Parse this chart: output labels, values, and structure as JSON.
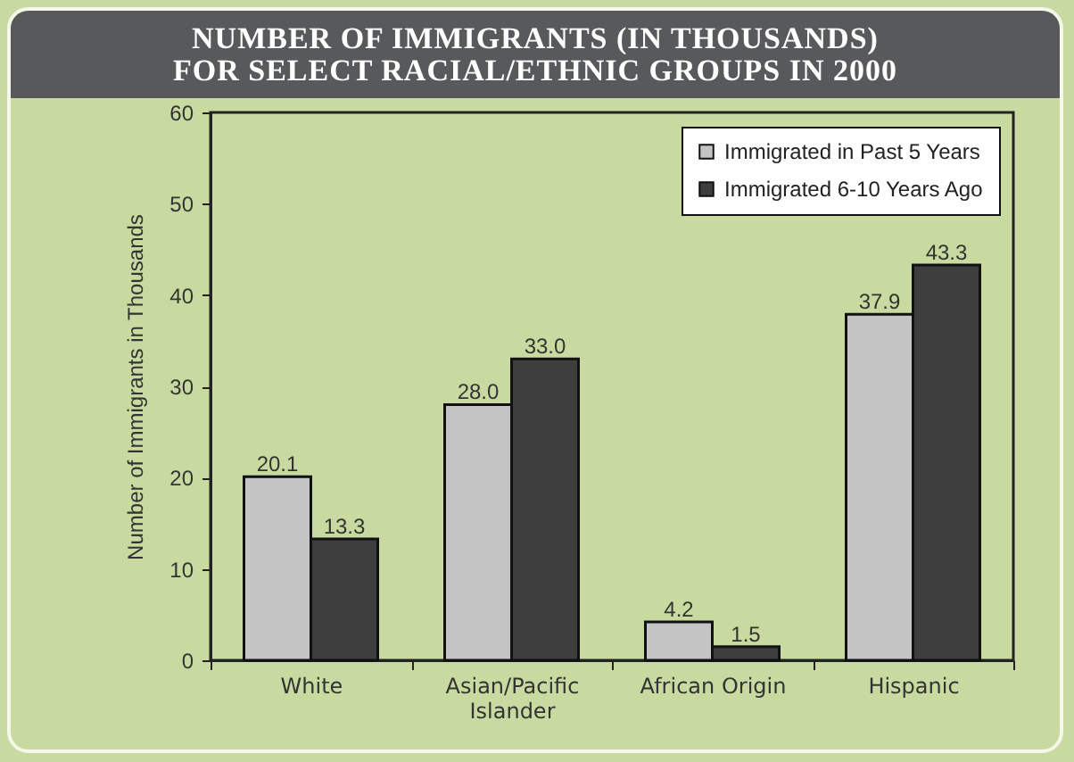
{
  "chart_data": {
    "type": "bar",
    "title": "NUMBER OF IMMIGRANTS (IN THOUSANDS)\nFOR SELECT RACIAL/ETHNIC GROUPS IN 2000",
    "ylabel": "Number of Immigrants in Thousands",
    "categories": [
      "White",
      "Asian/Pacific Islander",
      "African Origin",
      "Hispanic"
    ],
    "series": [
      {
        "name": "Immigrated in Past 5 Years",
        "color": "#c4c4c4",
        "values": [
          20.1,
          28.0,
          4.2,
          37.9
        ],
        "value_labels": [
          "20.1",
          "28.0",
          "4.2",
          "37.9"
        ]
      },
      {
        "name": "Immigrated 6-10 Years Ago",
        "color": "#3e3e3e",
        "values": [
          13.3,
          33.0,
          1.5,
          43.3
        ],
        "value_labels": [
          "13.3",
          "33.0",
          "1.5",
          "43.3"
        ]
      }
    ],
    "ylim": [
      0,
      60
    ],
    "yticks": [
      0,
      10,
      20,
      30,
      40,
      50,
      60
    ],
    "grid": false,
    "legend": "top right"
  }
}
